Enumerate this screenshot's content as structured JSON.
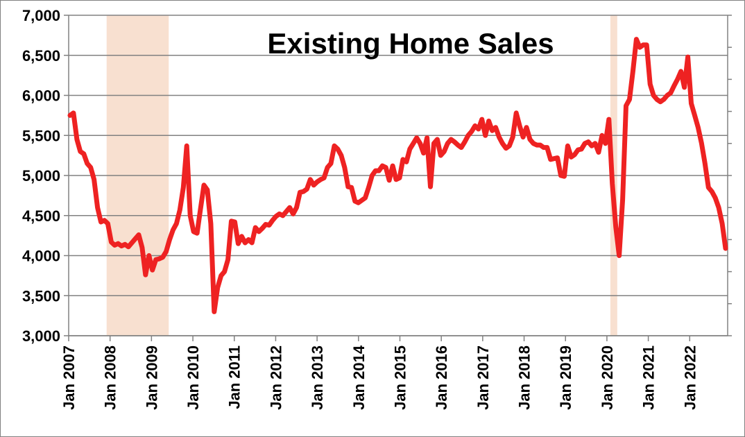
{
  "chart_data": {
    "type": "line",
    "title": "Existing Home Sales",
    "xlabel": "",
    "ylabel": "",
    "ylim": [
      3000,
      7000
    ],
    "y_ticks": [
      3000,
      3500,
      4000,
      4500,
      5000,
      5500,
      6000,
      6500,
      7000
    ],
    "y_tick_labels": [
      "3,000",
      "3,500",
      "4,000",
      "4,500",
      "5,000",
      "5,500",
      "6,000",
      "6,500",
      "7,000"
    ],
    "x_tick_labels": [
      "Jan 2007",
      "Jan 2008",
      "Jan 2009",
      "Jan 2010",
      "Jan 2011",
      "Jan 2012",
      "Jan 2013",
      "Jan 2014",
      "Jan 2015",
      "Jan 2016",
      "Jan 2017",
      "Jan 2018",
      "Jan 2019",
      "Jan 2020",
      "Jan 2021",
      "Jan 2022"
    ],
    "x_start": "Jan 2007",
    "x_end": "Dec 2022",
    "grid": true,
    "recession_shading": [
      {
        "start": "Dec 2007",
        "end": "Jun 2009"
      },
      {
        "start": "Feb 2020",
        "end": "Apr 2020"
      }
    ],
    "series": [
      {
        "name": "",
        "color": "#ee2222",
        "values": [
          5750,
          5780,
          5450,
          5300,
          5270,
          5150,
          5100,
          4950,
          4600,
          4420,
          4440,
          4400,
          4170,
          4130,
          4150,
          4120,
          4140,
          4110,
          4160,
          4210,
          4260,
          4100,
          3760,
          4000,
          3820,
          3950,
          3960,
          3980,
          4050,
          4200,
          4320,
          4400,
          4570,
          4850,
          5370,
          4500,
          4300,
          4280,
          4580,
          4880,
          4820,
          4400,
          3300,
          3600,
          3750,
          3800,
          3950,
          4430,
          4420,
          4150,
          4240,
          4160,
          4200,
          4160,
          4350,
          4300,
          4340,
          4390,
          4380,
          4440,
          4490,
          4520,
          4500,
          4550,
          4600,
          4520,
          4600,
          4790,
          4800,
          4830,
          4950,
          4880,
          4920,
          4950,
          4970,
          5100,
          5150,
          5370,
          5330,
          5250,
          5100,
          4860,
          4850,
          4680,
          4660,
          4690,
          4720,
          4850,
          5000,
          5060,
          5060,
          5120,
          5100,
          4940,
          5120,
          4950,
          4970,
          5200,
          5170,
          5330,
          5400,
          5470,
          5400,
          5280,
          5470,
          4860,
          5400,
          5450,
          5250,
          5300,
          5400,
          5450,
          5420,
          5380,
          5350,
          5420,
          5500,
          5550,
          5620,
          5580,
          5700,
          5500,
          5680,
          5560,
          5600,
          5480,
          5400,
          5340,
          5370,
          5480,
          5780,
          5620,
          5480,
          5600,
          5450,
          5400,
          5380,
          5380,
          5350,
          5350,
          5200,
          5210,
          5220,
          5000,
          4990,
          5370,
          5230,
          5260,
          5320,
          5330,
          5400,
          5420,
          5370,
          5400,
          5290,
          5500,
          5400,
          5700,
          4900,
          4360,
          4000,
          4700,
          5870,
          5950,
          6300,
          6700,
          6600,
          6630,
          6630,
          6140,
          6000,
          5950,
          5920,
          5950,
          6000,
          6030,
          6120,
          6200,
          6300,
          6100,
          6480,
          5900,
          5750,
          5600,
          5400,
          5150,
          4850,
          4800,
          4720,
          4600,
          4400,
          4090
        ]
      }
    ]
  }
}
